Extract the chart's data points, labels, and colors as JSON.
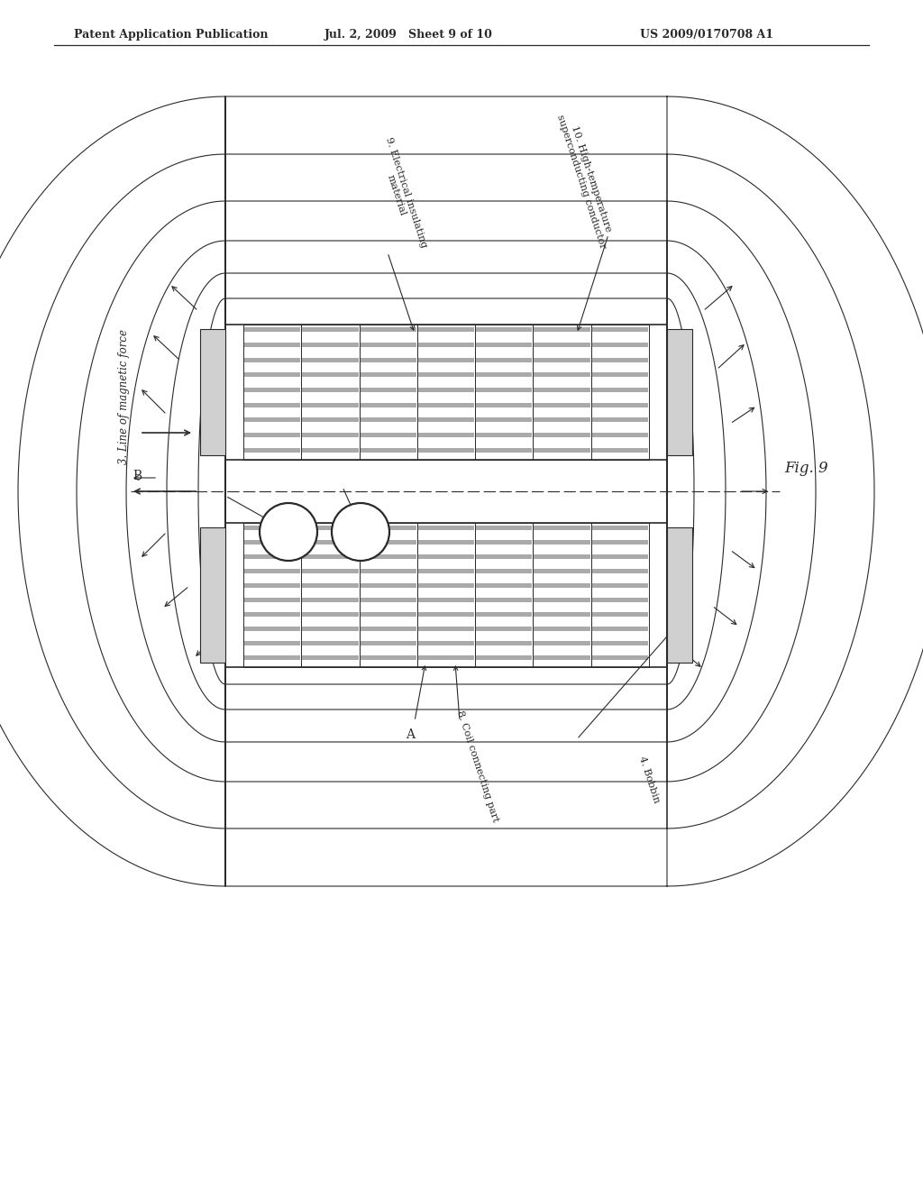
{
  "title_left": "Patent Application Publication",
  "title_mid": "Jul. 2, 2009   Sheet 9 of 10",
  "title_right": "US 2009/0170708 A1",
  "fig_label": "Fig. 9",
  "label_3": "3. Line of magnetic force",
  "label_4": "4. Bobbin",
  "label_8": "8. Coil connecting part",
  "label_9": "9. Electrical insulating\nmaterial",
  "label_10": "10. High-temperature\nsuperconducting conductor",
  "label_A": "A",
  "label_B": "B",
  "bg_color": "#ffffff",
  "line_color": "#2a2a2a"
}
